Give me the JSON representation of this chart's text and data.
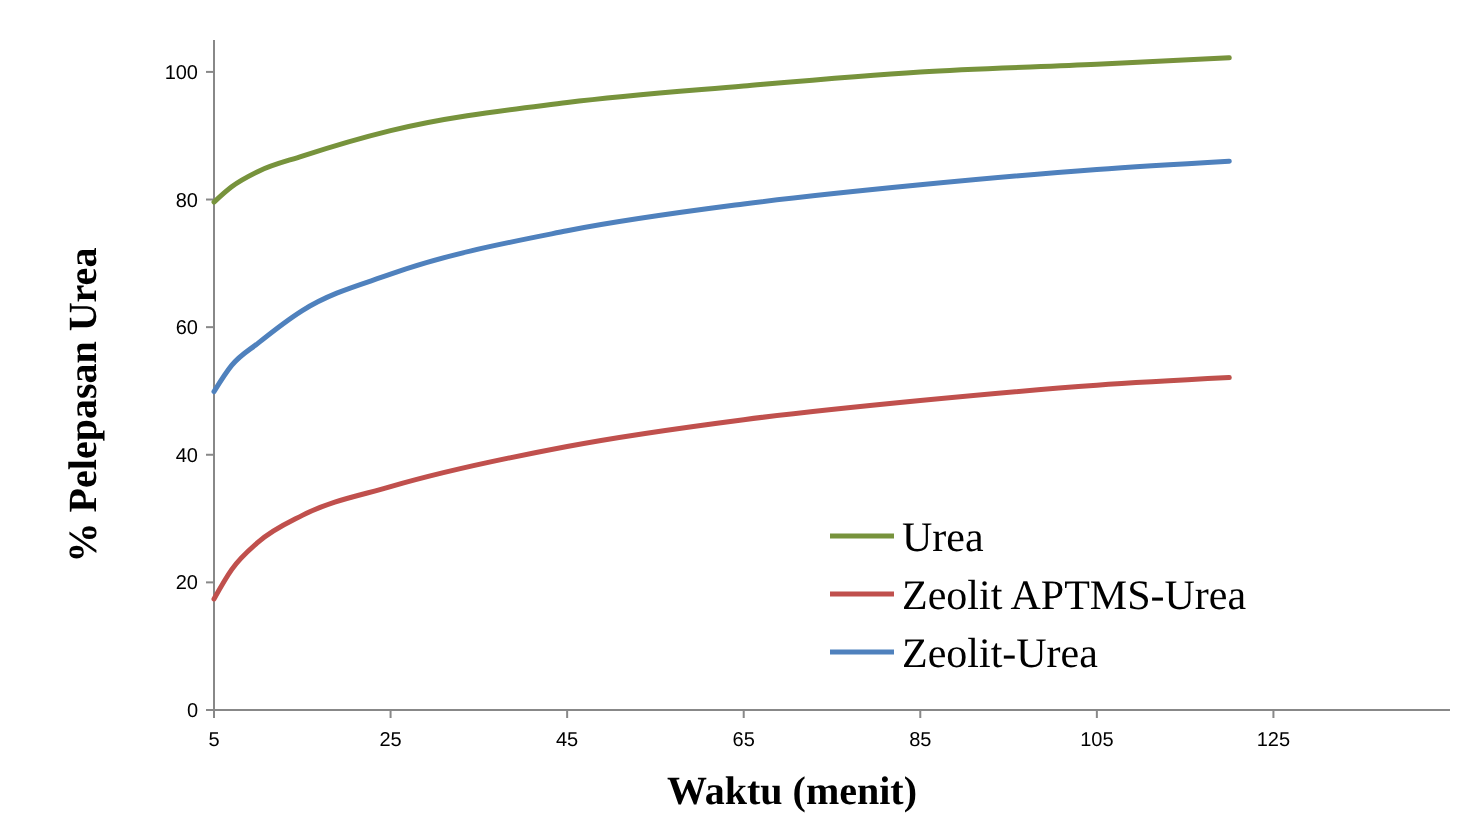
{
  "chart_data": {
    "type": "line",
    "xlabel": "Waktu (menit)",
    "ylabel": "% Pelepasan Urea",
    "xlim": [
      5,
      145
    ],
    "xticks": [
      5,
      25,
      45,
      65,
      85,
      105,
      125
    ],
    "ylim": [
      0,
      105
    ],
    "yticks": [
      0,
      20,
      40,
      60,
      80,
      100
    ],
    "x": [
      5,
      7,
      10,
      15,
      25,
      45,
      65,
      85,
      105,
      120
    ],
    "series": [
      {
        "name": "Urea",
        "color": "#77933c",
        "values": [
          79.6,
          82,
          84.4,
          86.8,
          90.8,
          95.2,
          97.8,
          100,
          101.2,
          102.2
        ]
      },
      {
        "name": "Zeolit APTMS-Urea",
        "color": "#c0504d",
        "values": [
          17.4,
          22,
          26.3,
          30.5,
          35,
          41.3,
          45.5,
          48.5,
          50.9,
          52.1
        ]
      },
      {
        "name": "Zeolit-Urea",
        "color": "#4f81bd",
        "values": [
          49.9,
          54,
          57.5,
          62.6,
          68.3,
          75.1,
          79.3,
          82.3,
          84.7,
          86
        ]
      }
    ],
    "legend": "bottom right",
    "grid": false,
    "line_style": "solid",
    "marker": "none"
  }
}
